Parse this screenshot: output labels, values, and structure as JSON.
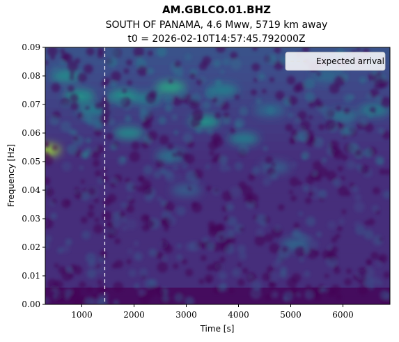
{
  "chart_data": {
    "type": "heatmap",
    "title": "AM.GBLCO.01.BHZ",
    "subtitle": "SOUTH OF PANAMA, 4.6 Mww, 5719 km away",
    "subtitle2": "t0 = 2026-02-10T14:57:45.792000Z",
    "xlabel": "Time [s]",
    "ylabel": "Frequency [Hz]",
    "xlim": [
      300,
      6900
    ],
    "ylim": [
      0.0,
      0.09
    ],
    "x_ticks": [
      1000,
      2000,
      3000,
      4000,
      5000,
      6000
    ],
    "x_tick_labels": [
      "1000",
      "2000",
      "3000",
      "4000",
      "5000",
      "6000"
    ],
    "y_ticks": [
      0.0,
      0.01,
      0.02,
      0.03,
      0.04,
      0.05,
      0.06,
      0.07,
      0.08,
      0.09
    ],
    "y_tick_labels": [
      "0.00",
      "0.01",
      "0.02",
      "0.03",
      "0.04",
      "0.05",
      "0.06",
      "0.07",
      "0.08",
      "0.09"
    ],
    "expected_arrival_time": 1440,
    "legend": {
      "entries": [
        "Expected arrival"
      ],
      "placement": "top-right",
      "line_color": "#ffffff",
      "line_style": "dashed"
    },
    "colormap": "viridis",
    "hotspots": [
      {
        "time": 300,
        "freq": 0.054,
        "intensity": 0.85
      },
      {
        "time": 700,
        "freq": 0.08,
        "intensity": 0.5
      },
      {
        "time": 950,
        "freq": 0.073,
        "intensity": 0.55
      },
      {
        "time": 1200,
        "freq": 0.068,
        "intensity": 0.45
      },
      {
        "time": 1800,
        "freq": 0.073,
        "intensity": 0.55
      },
      {
        "time": 1900,
        "freq": 0.06,
        "intensity": 0.5
      },
      {
        "time": 2250,
        "freq": 0.072,
        "intensity": 0.45
      },
      {
        "time": 2700,
        "freq": 0.076,
        "intensity": 0.6
      },
      {
        "time": 3350,
        "freq": 0.064,
        "intensity": 0.55
      },
      {
        "time": 3700,
        "freq": 0.075,
        "intensity": 0.45
      },
      {
        "time": 4100,
        "freq": 0.058,
        "intensity": 0.45
      },
      {
        "time": 2700,
        "freq": 0.052,
        "intensity": 0.4
      },
      {
        "time": 4600,
        "freq": 0.068,
        "intensity": 0.35
      },
      {
        "time": 5100,
        "freq": 0.021,
        "intensity": 0.35
      },
      {
        "time": 6000,
        "freq": 0.066,
        "intensity": 0.4
      },
      {
        "time": 6600,
        "freq": 0.068,
        "intensity": 0.45
      },
      {
        "time": 5700,
        "freq": 0.08,
        "intensity": 0.35
      },
      {
        "time": 3000,
        "freq": 0.04,
        "intensity": 0.3
      },
      {
        "time": 4700,
        "freq": 0.048,
        "intensity": 0.3
      }
    ]
  }
}
